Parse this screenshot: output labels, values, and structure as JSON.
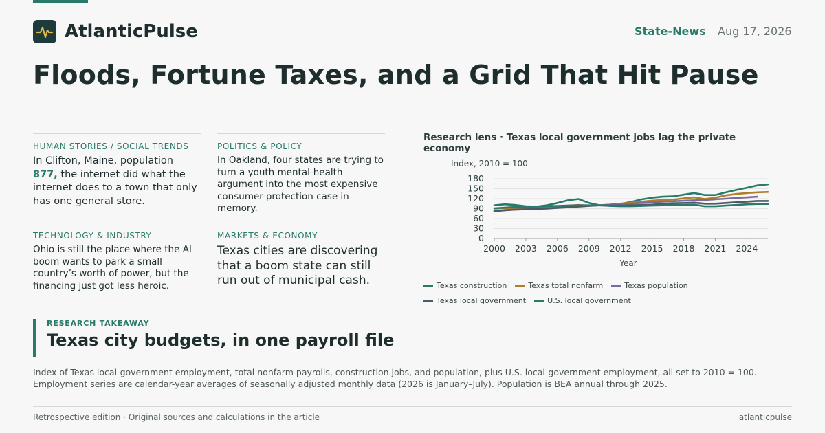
{
  "brand": {
    "name": "AtlanticPulse",
    "logo_icon": "pulse-icon"
  },
  "header": {
    "section": "State-News",
    "date": "Aug 17, 2026"
  },
  "headline": "Floods, Fortune Taxes, and a Grid That Hit Pause",
  "cards": [
    {
      "kicker": "HUMAN STORIES / SOCIAL TRENDS",
      "body_pre": "In Clifton, Maine, population ",
      "body_highlight": "877,",
      "body_post": " the internet did what the internet does to a town that only has one general store."
    },
    {
      "kicker": "POLITICS & POLICY",
      "body": "In Oakland, four states are trying to turn a youth mental-health argument into the most expensive consumer-protection case in memory."
    },
    {
      "kicker": "TECHNOLOGY & INDUSTRY",
      "body": "Ohio is still the place where the AI boom wants to park a small country’s worth of power, but the financing just got less heroic."
    },
    {
      "kicker": "MARKETS & ECONOMY",
      "body": "Texas cities are discovering that a boom state can still run out of municipal cash."
    }
  ],
  "chart": {
    "title": "Research lens · Texas local government jobs lag the private economy"
  },
  "chart_data": {
    "type": "line",
    "title": "Research lens · Texas local government jobs lag the private economy",
    "ylabel": "Index, 2010 = 100",
    "xlabel": "Year",
    "xlim": [
      2000,
      2026
    ],
    "ylim": [
      0,
      180
    ],
    "xticks": [
      2000,
      2003,
      2006,
      2009,
      2012,
      2015,
      2018,
      2021,
      2024
    ],
    "yticks": [
      0,
      30,
      60,
      90,
      120,
      150,
      180
    ],
    "grid": "horizontal",
    "legend_position": "bottom",
    "series": [
      {
        "name": "Texas construction",
        "color": "#2a7a6a",
        "x": [
          2000,
          2001,
          2002,
          2003,
          2004,
          2005,
          2006,
          2007,
          2008,
          2009,
          2010,
          2011,
          2012,
          2013,
          2014,
          2015,
          2016,
          2017,
          2018,
          2019,
          2020,
          2021,
          2022,
          2023,
          2024,
          2025,
          2026
        ],
        "y": [
          100,
          103,
          101,
          97,
          96,
          100,
          107,
          115,
          119,
          107,
          100,
          101,
          104,
          110,
          118,
          123,
          126,
          127,
          132,
          137,
          131,
          131,
          139,
          146,
          153,
          160,
          163
        ]
      },
      {
        "name": "Texas total nonfarm",
        "color": "#b07d2a",
        "x": [
          2000,
          2001,
          2002,
          2003,
          2004,
          2005,
          2006,
          2007,
          2008,
          2009,
          2010,
          2011,
          2012,
          2013,
          2014,
          2015,
          2016,
          2017,
          2018,
          2019,
          2020,
          2021,
          2022,
          2023,
          2024,
          2025,
          2026
        ],
        "y": [
          90,
          91,
          90,
          89,
          91,
          93,
          96,
          99,
          101,
          99,
          100,
          102,
          105,
          108,
          111,
          114,
          116,
          117,
          121,
          124,
          119,
          123,
          130,
          134,
          137,
          139,
          140
        ]
      },
      {
        "name": "Texas population",
        "color": "#7b6a9e",
        "x": [
          2000,
          2001,
          2002,
          2003,
          2004,
          2005,
          2006,
          2007,
          2008,
          2009,
          2010,
          2011,
          2012,
          2013,
          2014,
          2015,
          2016,
          2017,
          2018,
          2019,
          2020,
          2021,
          2022,
          2023,
          2024,
          2025
        ],
        "y": [
          83,
          85,
          87,
          88,
          90,
          92,
          94,
          96,
          97,
          99,
          100,
          102,
          104,
          105,
          107,
          109,
          111,
          112,
          114,
          115,
          116,
          118,
          120,
          122,
          124,
          126
        ]
      },
      {
        "name": "Texas local government",
        "color": "#4a5a66",
        "x": [
          2000,
          2001,
          2002,
          2003,
          2004,
          2005,
          2006,
          2007,
          2008,
          2009,
          2010,
          2011,
          2012,
          2013,
          2014,
          2015,
          2016,
          2017,
          2018,
          2019,
          2020,
          2021,
          2022,
          2023,
          2024,
          2025,
          2026
        ],
        "y": [
          82,
          85,
          87,
          88,
          89,
          90,
          92,
          94,
          96,
          98,
          100,
          99,
          99,
          100,
          101,
          102,
          104,
          106,
          107,
          108,
          105,
          105,
          107,
          109,
          111,
          113,
          113
        ]
      },
      {
        "name": "U.S. local government",
        "color": "#2a7a6a",
        "x": [
          2000,
          2001,
          2002,
          2003,
          2004,
          2005,
          2006,
          2007,
          2008,
          2009,
          2010,
          2011,
          2012,
          2013,
          2014,
          2015,
          2016,
          2017,
          2018,
          2019,
          2020,
          2021,
          2022,
          2023,
          2024,
          2025,
          2026
        ],
        "y": [
          91,
          93,
          95,
          95,
          96,
          97,
          98,
          99,
          100,
          100,
          100,
          98,
          97,
          97,
          98,
          99,
          100,
          101,
          101,
          102,
          97,
          97,
          99,
          101,
          103,
          104,
          104
        ]
      }
    ]
  },
  "takeaway": {
    "kicker": "RESEARCH TAKEAWAY",
    "title": "Texas city budgets, in one payroll file"
  },
  "note": "Index of Texas local-government employment, total nonfarm payrolls, construction jobs, and population, plus U.S. local-government employment, all set to 2010 = 100. Employment series are calendar-year averages of seasonally adjusted monthly data (2026 is January–July). Population is BEA annual through 2025.",
  "footer": {
    "left": "Retrospective edition · Original sources and calculations in the article",
    "right": "atlanticpulse"
  }
}
